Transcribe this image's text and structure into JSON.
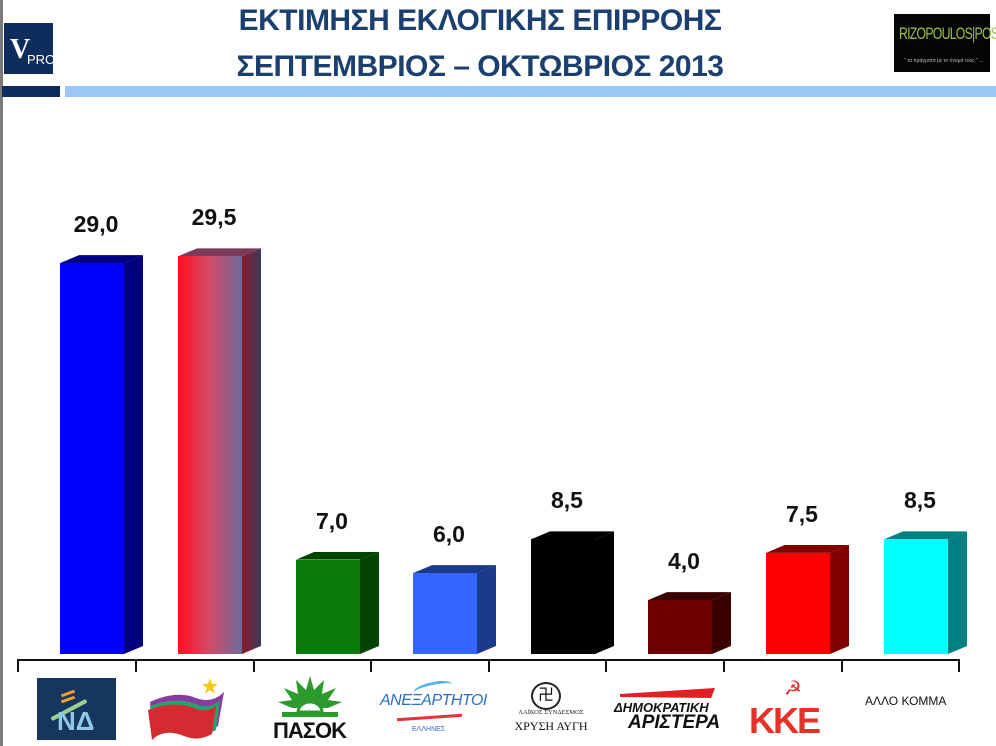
{
  "header": {
    "title_line1": "ΕΚΤΙΜΗΣΗ ΕΚΛΟΓΙΚΗΣ ΕΠΙΡΡΟΗΣ",
    "title_line2": "ΣΕΠΤΕΜΒΡΙΟΣ – ΟΚΤΩΒΡΙΟΣ 2013",
    "title_color": "#1b3f6e",
    "left_logo": {
      "big": "V",
      "small": "PRC"
    },
    "right_logo": {
      "name": "RIZOPOULOS|POST",
      "tagline": "\" τα πράγματα με το όνομά τους \" ..."
    }
  },
  "logos": {
    "nd": "ΝΔ",
    "pasok": "ΠΑΣΟΚ",
    "anel_line1": "ΑΝΕΞΑΡΤΗΤΟΙ",
    "anel_line2": "ΕΛΛΗΝΕΣ",
    "xa_line1": "ΛΑΪΚΟΣ ΣΥΝΔΕΣΜΟΣ",
    "xa_line2": "ΧΡΥΣΗ ΑΥΓΗ",
    "dimar_line1": "ΔΗΜΟΚΡΑΤΙΚΗ",
    "dimar_line2": "ΑΡΙΣΤΕΡΑ",
    "kke": "ΚΚΕ",
    "allo": "ΑΛΛΟ ΚΟΜΜΑ"
  },
  "chart_data": {
    "type": "bar",
    "title": "ΕΚΤΙΜΗΣΗ ΕΚΛΟΓΙΚΗΣ ΕΠΙΡΡΟΗΣ — ΣΕΠΤΕΜΒΡΙΟΣ – ΟΚΤΩΒΡΙΟΣ 2013",
    "categories": [
      "ΝΔ",
      "ΣΥΡΙΖΑ",
      "ΠΑΣΟΚ",
      "ΑΝΕΞΑΡΤΗΤΟΙ ΕΛΛΗΝΕΣ",
      "ΧΡΥΣΗ ΑΥΓΗ",
      "ΔΗΜΟΚΡΑΤΙΚΗ ΑΡΙΣΤΕΡΑ",
      "ΚΚΕ",
      "ΑΛΛΟ ΚΟΜΜΑ"
    ],
    "values": [
      29.0,
      29.5,
      7.0,
      6.0,
      8.5,
      4.0,
      7.5,
      8.5
    ],
    "labels": [
      "29,0",
      "29,5",
      "7,0",
      "6,0",
      "8,5",
      "4,0",
      "7,5",
      "8,5"
    ],
    "colors": [
      "#0000ff",
      "#ff1020",
      "#0a7a0a",
      "#3366ff",
      "#000000",
      "#6e0000",
      "#ff0000",
      "#00ffff"
    ],
    "side_colors": [
      "#000080",
      "#701a30",
      "#004400",
      "#1a3a8a",
      "#000000",
      "#3a0000",
      "#800000",
      "#008080"
    ],
    "xlabel": "",
    "ylabel": "",
    "ylim": [
      0,
      30
    ],
    "grid": false,
    "style": "3d-column"
  }
}
